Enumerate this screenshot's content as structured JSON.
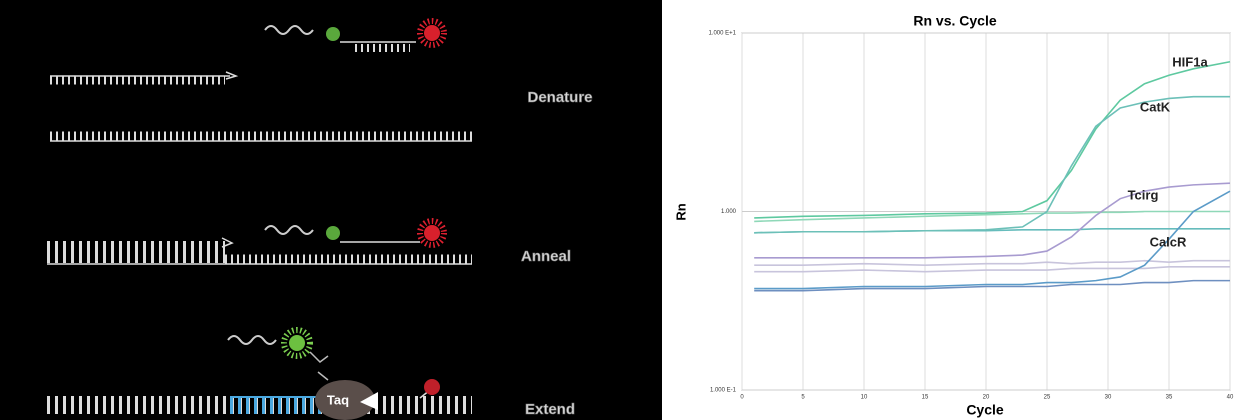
{
  "diagram": {
    "steps": [
      "Denature",
      "Anneal",
      "Extend"
    ],
    "enzyme": "Taq"
  },
  "chart_data": {
    "type": "line",
    "title": "Rn vs. Cycle",
    "x_label": "Cycle",
    "y_label": "Rn",
    "x": [
      1,
      5,
      10,
      15,
      20,
      23,
      25,
      27,
      29,
      31,
      33,
      35,
      37,
      40
    ],
    "series": [
      {
        "color": "#8fd8b8",
        "values": [
          0.88,
          0.9,
          0.92,
          0.94,
          0.96,
          0.97,
          0.98,
          0.98,
          0.99,
          0.99,
          1.0,
          1.0,
          1.0,
          1.0
        ]
      },
      {
        "color": "#66bcbc",
        "values": [
          0.76,
          0.77,
          0.77,
          0.78,
          0.78,
          0.79,
          0.79,
          0.79,
          0.8,
          0.8,
          0.8,
          0.8,
          0.8,
          0.8
        ]
      },
      {
        "color": "#c8c4dc",
        "values": [
          0.5,
          0.5,
          0.51,
          0.5,
          0.51,
          0.51,
          0.52,
          0.51,
          0.52,
          0.52,
          0.53,
          0.52,
          0.53,
          0.53
        ]
      },
      {
        "color": "#c8c4dc",
        "values": [
          0.46,
          0.46,
          0.47,
          0.46,
          0.47,
          0.47,
          0.47,
          0.48,
          0.48,
          0.48,
          0.48,
          0.49,
          0.49,
          0.49
        ]
      },
      {
        "color": "#6e8fc0",
        "values": [
          0.36,
          0.36,
          0.37,
          0.37,
          0.38,
          0.38,
          0.38,
          0.39,
          0.39,
          0.39,
          0.4,
          0.4,
          0.41,
          0.41
        ]
      },
      {
        "name": "HIF1a",
        "color": "#5ec9a0",
        "values": [
          0.92,
          0.94,
          0.95,
          0.97,
          0.98,
          1.0,
          1.15,
          1.7,
          2.9,
          4.2,
          5.2,
          5.8,
          6.3,
          6.9
        ]
      },
      {
        "name": "CatK",
        "color": "#6cc0b8",
        "values": [
          0.76,
          0.77,
          0.77,
          0.78,
          0.79,
          0.82,
          1.0,
          1.8,
          3.0,
          3.8,
          4.1,
          4.3,
          4.4,
          4.4
        ]
      },
      {
        "name": "Tcirg",
        "color": "#a89bd0",
        "values": [
          0.55,
          0.55,
          0.55,
          0.55,
          0.56,
          0.57,
          0.6,
          0.72,
          0.95,
          1.18,
          1.3,
          1.37,
          1.41,
          1.44
        ]
      },
      {
        "name": "CalcR",
        "color": "#5b9bc8",
        "values": [
          0.37,
          0.37,
          0.38,
          0.38,
          0.39,
          0.39,
          0.4,
          0.4,
          0.41,
          0.43,
          0.5,
          0.7,
          1.0,
          1.3
        ]
      }
    ],
    "xlim": [
      0,
      40
    ],
    "xticks": [
      0,
      5,
      10,
      15,
      20,
      25,
      30,
      35,
      40
    ],
    "ylim": [
      0.1,
      10
    ],
    "yticks": [
      {
        "value": 10,
        "label": "1.000 E+1"
      },
      {
        "value": 1,
        "label": "1.000"
      },
      {
        "value": 0.1,
        "label": "1.000 E-1"
      }
    ],
    "log_y": true,
    "grid": true
  }
}
